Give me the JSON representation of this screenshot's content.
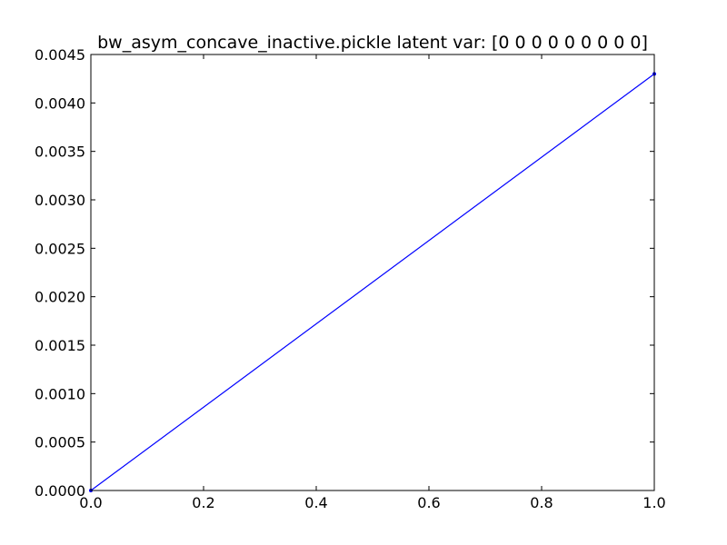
{
  "chart_data": {
    "type": "line",
    "title": "bw_asym_concave_inactive.pickle latent var: [0 0 0 0 0 0 0 0 0]",
    "xlabel": "",
    "ylabel": "",
    "xlim": [
      0.0,
      1.0
    ],
    "ylim": [
      0.0,
      0.0045
    ],
    "grid": false,
    "x_ticks": [
      "0.0",
      "0.2",
      "0.4",
      "0.6",
      "0.8",
      "1.0"
    ],
    "y_ticks": [
      "0.0000",
      "0.0005",
      "0.0010",
      "0.0015",
      "0.0020",
      "0.0025",
      "0.0030",
      "0.0035",
      "0.0040",
      "0.0045"
    ],
    "series": [
      {
        "color": "#0000ff",
        "x": [
          0.0,
          1.0
        ],
        "y": [
          0.0,
          0.0043
        ]
      }
    ]
  }
}
